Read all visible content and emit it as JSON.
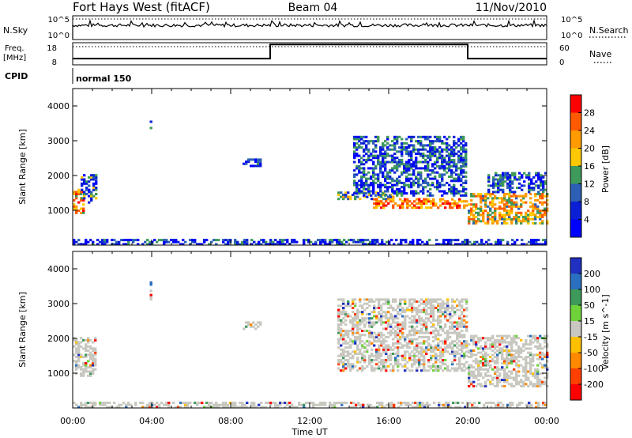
{
  "header": {
    "station": "Fort Hays West (fitACF)",
    "beam": "Beam 04",
    "date": "11/Nov/2010"
  },
  "status_panels": {
    "nsky": {
      "left_label": "N.Sky",
      "left_ticks": [
        "10^5",
        "10^0"
      ],
      "right_label": "N.Search",
      "right_ticks": [
        "10^5",
        "10^0"
      ]
    },
    "freq": {
      "left_label_1": "Freq.",
      "left_label_2": "[MHz]",
      "left_ticks": [
        "18",
        "8"
      ],
      "right_label": "Nave",
      "right_ticks": [
        "60",
        "0"
      ],
      "freq_steps": [
        {
          "from_hour": 0,
          "to_hour": 10,
          "level": 0.28
        },
        {
          "from_hour": 10,
          "to_hour": 20,
          "level": 0.92
        },
        {
          "from_hour": 20,
          "to_hour": 24,
          "level": 0.28
        }
      ]
    },
    "cpid": {
      "label": "CPID",
      "mode": "normal 150"
    }
  },
  "chart_data": [
    {
      "type": "heatmap",
      "name": "power",
      "ylabel": "Slant Range [km]",
      "xlabel": "",
      "ylim": [
        0,
        4500
      ],
      "yticks": [
        1000,
        2000,
        3000,
        4000
      ],
      "xlim_hours": [
        0,
        24
      ],
      "colorbar": {
        "label": "Power [dB]",
        "ticks": [
          "28",
          "24",
          "20",
          "16",
          "12",
          "8",
          "4"
        ],
        "colors": [
          "#ff0000",
          "#ff5a00",
          "#ff9a00",
          "#ffc800",
          "#3e9a5a",
          "#2c5fb5",
          "#0a1fd6",
          "#0000ff"
        ]
      },
      "regions": [
        {
          "t0": 0.0,
          "t1": 0.55,
          "r0": 900,
          "r1": 1600,
          "level": 0.7
        },
        {
          "t0": 0.4,
          "t1": 1.2,
          "r0": 1200,
          "r1": 2000,
          "level": 0.3
        },
        {
          "t0": 3.9,
          "t1": 4.0,
          "r0": 3100,
          "r1": 3600,
          "level": 0.2
        },
        {
          "t0": 8.6,
          "t1": 9.5,
          "r0": 2250,
          "r1": 2450,
          "level": 0.2
        },
        {
          "t0": 13.4,
          "t1": 16.3,
          "r0": 1300,
          "r1": 1500,
          "level": 0.4
        },
        {
          "t0": 15.2,
          "t1": 20.0,
          "r0": 1050,
          "r1": 1300,
          "level": 0.75
        },
        {
          "t0": 14.2,
          "t1": 19.9,
          "r0": 1400,
          "r1": 3100,
          "level": 0.25
        },
        {
          "t0": 20.0,
          "t1": 24.0,
          "r0": 600,
          "r1": 1500,
          "level": 0.6
        },
        {
          "t0": 21.0,
          "t1": 24.0,
          "r0": 1500,
          "r1": 2100,
          "level": 0.25
        },
        {
          "t0": 0.0,
          "t1": 24.0,
          "r0": 0,
          "r1": 150,
          "level": 0.2
        }
      ]
    },
    {
      "type": "heatmap",
      "name": "velocity",
      "ylabel": "Slant Range [km]",
      "xlabel": "Time UT",
      "ylim": [
        0,
        4500
      ],
      "yticks": [
        1000,
        2000,
        3000,
        4000
      ],
      "xlim_hours": [
        0,
        24
      ],
      "xticks": [
        "00:00",
        "04:00",
        "08:00",
        "12:00",
        "16:00",
        "20:00",
        "00:00"
      ],
      "colorbar": {
        "label": "Velocity [m s^-1]",
        "ticks": [
          "200",
          "100",
          "50",
          "15",
          "-15",
          "-50",
          "-100",
          "-200"
        ],
        "colors": [
          "#2030c0",
          "#2a6fc0",
          "#3e9a5a",
          "#6fd23a",
          "#c8c8c0",
          "#ffc000",
          "#ff8a00",
          "#ff4000",
          "#ff0000"
        ]
      },
      "regions": [
        {
          "t0": 0.0,
          "t1": 1.2,
          "r0": 900,
          "r1": 2000,
          "level": 0.0
        },
        {
          "t0": 3.9,
          "t1": 4.0,
          "r0": 3100,
          "r1": 3600,
          "level": 0.0
        },
        {
          "t0": 8.6,
          "t1": 9.5,
          "r0": 2250,
          "r1": 2450,
          "level": 0.0
        },
        {
          "t0": 13.4,
          "t1": 20.0,
          "r0": 1050,
          "r1": 3100,
          "level": 0.0
        },
        {
          "t0": 20.0,
          "t1": 24.0,
          "r0": 600,
          "r1": 2100,
          "level": 0.0
        },
        {
          "t0": 0.0,
          "t1": 24.0,
          "r0": 0,
          "r1": 150,
          "level": 0.0
        }
      ]
    }
  ]
}
